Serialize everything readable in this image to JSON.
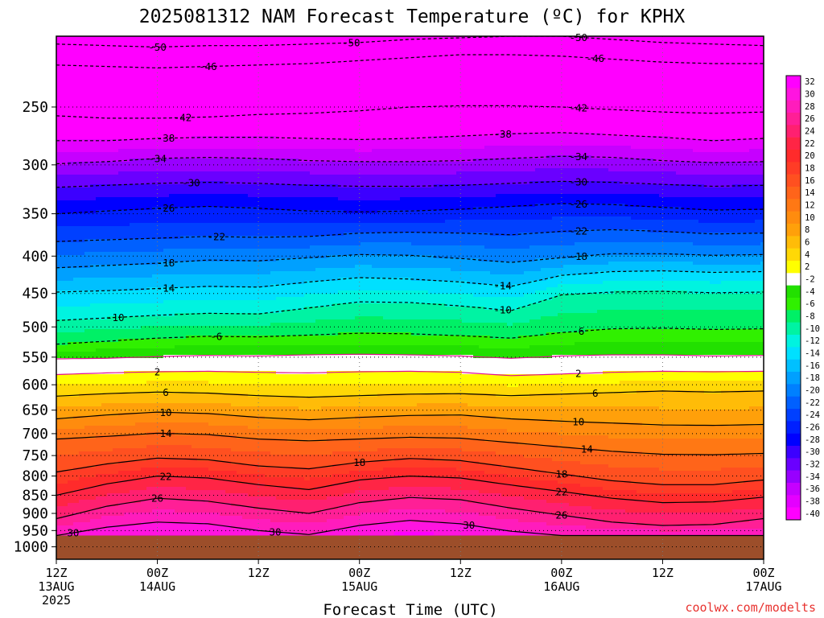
{
  "title": "2025081312 NAM Forecast Temperature (ºC) for KPHX",
  "credit": "coolwx.com/modelts",
  "chart_data": {
    "type": "heatmap",
    "title": "2025081312 NAM Forecast Temperature (ºC) for KPHX",
    "xlabel": "Forecast Time (UTC)",
    "ylabel": "",
    "x_ticks": [
      {
        "hour": 0,
        "label1": "12Z",
        "label2": "13AUG",
        "label3": "2025"
      },
      {
        "hour": 12,
        "label1": "00Z",
        "label2": "14AUG",
        "label3": ""
      },
      {
        "hour": 24,
        "label1": "12Z",
        "label2": "",
        "label3": ""
      },
      {
        "hour": 36,
        "label1": "00Z",
        "label2": "15AUG",
        "label3": ""
      },
      {
        "hour": 48,
        "label1": "12Z",
        "label2": "",
        "label3": ""
      },
      {
        "hour": 60,
        "label1": "00Z",
        "label2": "16AUG",
        "label3": ""
      },
      {
        "hour": 72,
        "label1": "12Z",
        "label2": "",
        "label3": ""
      },
      {
        "hour": 84,
        "label1": "00Z",
        "label2": "17AUG",
        "label3": ""
      }
    ],
    "x_range_hours": [
      0,
      84
    ],
    "y_ticks_hPa": [
      250,
      300,
      350,
      400,
      450,
      500,
      550,
      600,
      650,
      700,
      750,
      800,
      850,
      900,
      950,
      1000
    ],
    "y_range_hPa": [
      200,
      1040
    ],
    "y_scale": "log",
    "ground_level_hPa": 965,
    "colorbar_ticks": [
      32,
      30,
      28,
      26,
      24,
      22,
      20,
      18,
      16,
      14,
      12,
      10,
      8,
      6,
      4,
      2,
      -2,
      -4,
      -6,
      -8,
      -10,
      -12,
      -14,
      -16,
      -18,
      -20,
      -22,
      -24,
      -26,
      -28,
      -30,
      -32,
      -34,
      -36,
      -38,
      -40
    ],
    "colorbar_colors": [
      "#ff00ff",
      "#ff14e0",
      "#ff1cbc",
      "#ff1f96",
      "#ff2070",
      "#ff2545",
      "#ff2b2b",
      "#ff3c26",
      "#ff5020",
      "#ff641a",
      "#ff7814",
      "#ff8c0e",
      "#ffa00a",
      "#ffbc08",
      "#ffd806",
      "#ffff00",
      "#ffffff",
      "#22e000",
      "#30f000",
      "#00f066",
      "#00f3a3",
      "#00f3e0",
      "#00e0ff",
      "#00c0ff",
      "#00a0ff",
      "#0080ff",
      "#0060ff",
      "#0040ff",
      "#0020ff",
      "#0000ff",
      "#3c00ff",
      "#6a00ff",
      "#9800ff",
      "#c600ff",
      "#e400ff",
      "#ff00ff"
    ],
    "isotherms": [
      {
        "temp": -50,
        "pressures_hPa": [
          205,
          206,
          207,
          206,
          206,
          205,
          204,
          202,
          201,
          200,
          200,
          202,
          204,
          205,
          206
        ]
      },
      {
        "temp": -46,
        "pressures_hPa": [
          219,
          220,
          221,
          220,
          219,
          218,
          216,
          214,
          212,
          212,
          213,
          215,
          217,
          218,
          218
        ]
      },
      {
        "temp": -42,
        "pressures_hPa": [
          257,
          259,
          259,
          258,
          256,
          255,
          253,
          250,
          249,
          249,
          250,
          252,
          254,
          255,
          254
        ]
      },
      {
        "temp": -38,
        "pressures_hPa": [
          278,
          278,
          276,
          275,
          275,
          276,
          277,
          276,
          274,
          272,
          271,
          273,
          275,
          278,
          276
        ]
      },
      {
        "temp": -34,
        "pressures_hPa": [
          299,
          297,
          294,
          293,
          294,
          296,
          297,
          297,
          296,
          294,
          292,
          293,
          296,
          298,
          297
        ]
      },
      {
        "temp": -30,
        "pressures_hPa": [
          322,
          320,
          318,
          317,
          318,
          320,
          321,
          321,
          320,
          318,
          316,
          317,
          319,
          321,
          320
        ]
      },
      {
        "temp": -26,
        "pressures_hPa": [
          350,
          347,
          344,
          342,
          344,
          347,
          348,
          347,
          345,
          342,
          339,
          340,
          343,
          346,
          345
        ]
      },
      {
        "temp": -22,
        "pressures_hPa": [
          382,
          380,
          378,
          376,
          377,
          376,
          372,
          371,
          372,
          374,
          370,
          368,
          370,
          373,
          372
        ]
      },
      {
        "temp": -18,
        "pressures_hPa": [
          415,
          412,
          409,
          405,
          406,
          402,
          398,
          399,
          403,
          408,
          402,
          397,
          397,
          399,
          398
        ]
      },
      {
        "temp": -14,
        "pressures_hPa": [
          448,
          446,
          443,
          440,
          441,
          434,
          428,
          430,
          434,
          440,
          425,
          420,
          419,
          421,
          420
        ]
      },
      {
        "temp": -10,
        "pressures_hPa": [
          490,
          486,
          482,
          479,
          480,
          471,
          462,
          463,
          468,
          475,
          452,
          448,
          447,
          449,
          448
        ]
      },
      {
        "temp": -6,
        "pressures_hPa": [
          528,
          523,
          518,
          515,
          516,
          513,
          510,
          511,
          514,
          518,
          509,
          503,
          502,
          504,
          503
        ]
      },
      {
        "temp": -2,
        "pressures_hPa": [
          553,
          552,
          549,
          547,
          548,
          546,
          545,
          546,
          548,
          552,
          548,
          546,
          546,
          548,
          547
        ]
      },
      {
        "temp": 2,
        "pressures_hPa": [
          581,
          578,
          576,
          575,
          577,
          578,
          576,
          575,
          577,
          583,
          580,
          577,
          575,
          576,
          575
        ]
      },
      {
        "temp": 6,
        "pressures_hPa": [
          622,
          617,
          614,
          616,
          621,
          624,
          621,
          618,
          617,
          621,
          618,
          615,
          612,
          614,
          612
        ]
      },
      {
        "temp": 10,
        "pressures_hPa": [
          668,
          660,
          654,
          657,
          665,
          670,
          665,
          661,
          660,
          668,
          673,
          677,
          681,
          682,
          680
        ]
      },
      {
        "temp": 14,
        "pressures_hPa": [
          712,
          706,
          699,
          702,
          712,
          716,
          712,
          708,
          710,
          720,
          730,
          740,
          747,
          748,
          745
        ]
      },
      {
        "temp": 18,
        "pressures_hPa": [
          790,
          770,
          756,
          760,
          775,
          782,
          766,
          757,
          762,
          778,
          795,
          812,
          822,
          822,
          810
        ]
      },
      {
        "temp": 22,
        "pressures_hPa": [
          850,
          820,
          800,
          805,
          822,
          835,
          810,
          800,
          805,
          823,
          840,
          858,
          870,
          868,
          855
        ]
      },
      {
        "temp": 26,
        "pressures_hPa": [
          915,
          880,
          858,
          866,
          885,
          900,
          870,
          856,
          862,
          885,
          905,
          925,
          935,
          932,
          915
        ]
      },
      {
        "temp": 30,
        "pressures_hPa": [
          965,
          940,
          925,
          930,
          950,
          962,
          935,
          920,
          930,
          952,
          965,
          965,
          965,
          965,
          965
        ]
      }
    ],
    "isotherm_hours": [
      0,
      6,
      12,
      18,
      24,
      30,
      36,
      42,
      48,
      54,
      60,
      66,
      72,
      78,
      84
    ],
    "isotherm_labels": [
      {
        "temp": -50,
        "hour": 35
      },
      {
        "temp": -50,
        "hour": 12
      },
      {
        "temp": -50,
        "hour": 62
      },
      {
        "temp": -46,
        "hour": 18
      },
      {
        "temp": -46,
        "hour": 64
      },
      {
        "temp": -42,
        "hour": 15
      },
      {
        "temp": -42,
        "hour": 62
      },
      {
        "temp": -38,
        "hour": 13
      },
      {
        "temp": -38,
        "hour": 53
      },
      {
        "temp": -34,
        "hour": 12
      },
      {
        "temp": -34,
        "hour": 62
      },
      {
        "temp": -30,
        "hour": 16
      },
      {
        "temp": -30,
        "hour": 62
      },
      {
        "temp": -26,
        "hour": 13
      },
      {
        "temp": -26,
        "hour": 62
      },
      {
        "temp": -22,
        "hour": 19
      },
      {
        "temp": -22,
        "hour": 62
      },
      {
        "temp": -18,
        "hour": 13
      },
      {
        "temp": -18,
        "hour": 62
      },
      {
        "temp": -14,
        "hour": 13
      },
      {
        "temp": -14,
        "hour": 53
      },
      {
        "temp": -10,
        "hour": 7
      },
      {
        "temp": -10,
        "hour": 53
      },
      {
        "temp": -6,
        "hour": 19
      },
      {
        "temp": -6,
        "hour": 62
      },
      {
        "temp": 2,
        "hour": 12
      },
      {
        "temp": 2,
        "hour": 62
      },
      {
        "temp": 6,
        "hour": 13
      },
      {
        "temp": 6,
        "hour": 64
      },
      {
        "temp": 10,
        "hour": 13
      },
      {
        "temp": 10,
        "hour": 62
      },
      {
        "temp": 14,
        "hour": 13
      },
      {
        "temp": 14,
        "hour": 63
      },
      {
        "temp": 18,
        "hour": 36
      },
      {
        "temp": 18,
        "hour": 60
      },
      {
        "temp": 22,
        "hour": 13
      },
      {
        "temp": 22,
        "hour": 60
      },
      {
        "temp": 26,
        "hour": 12
      },
      {
        "temp": 26,
        "hour": 60
      },
      {
        "temp": 30,
        "hour": 2
      },
      {
        "temp": 30,
        "hour": 26
      },
      {
        "temp": 30,
        "hour": 49
      }
    ]
  }
}
